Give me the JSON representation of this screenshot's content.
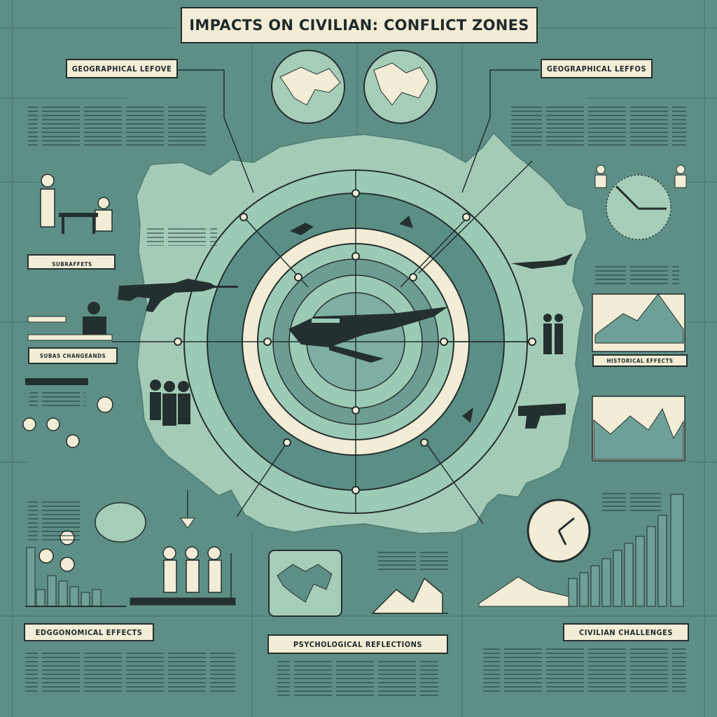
{
  "title": "IMPACTS ON CIVILIAN: CONFLICT ZONES",
  "labels": {
    "top_left": "GEOGRAPHICAL LEFOVE",
    "top_right": "GEOGRAPHICAL LEFFOS",
    "bottom_left": "EDGGONOMICAL EFFECTS",
    "bottom_center": "PSYCHOLOGICAL REFLECTIONS",
    "bottom_right": "CIVILIAN CHALLENGES",
    "left_sub1": "SUBRAFFETS",
    "left_sub2": "SUBAS CHANGEANDS",
    "right_sub": "HISTORICAL EFFECTS"
  },
  "colors": {
    "background": "#5e8f86",
    "panel": "#f3ecd6",
    "land": "#a6cdb8",
    "ring_dark": "#5b8f86",
    "ring_light": "#9ccbb5",
    "ink": "#23302f"
  },
  "icons": [
    "globe-icon",
    "rifle-icon",
    "aircraft-icon",
    "pistol-icon",
    "clock-icon",
    "people-icon"
  ]
}
